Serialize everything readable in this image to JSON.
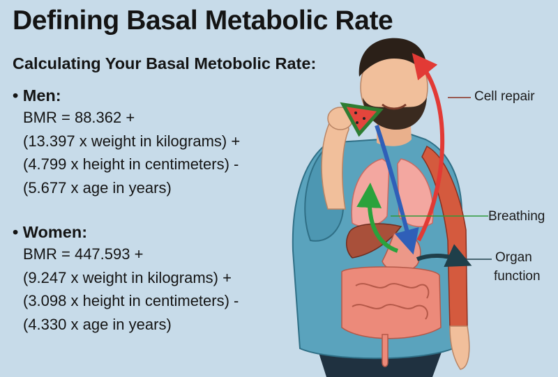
{
  "title": "Defining Basal Metabolic Rate",
  "subtitle": "Calculating Your Basal Metobolic Rate:",
  "bullet": "•",
  "sections": [
    {
      "heading": "Men:",
      "lines": [
        "BMR = 88.362 +",
        "(13.397 x weight in kilograms) +",
        "(4.799 x height in centimeters) -",
        "(5.677 x age in years)"
      ]
    },
    {
      "heading": "Women:",
      "lines": [
        "BMR = 447.593 +",
        "(9.247 x weight in kilograms) +",
        "(3.098 x height in centimeters) -",
        "(4.330 x age in years)"
      ]
    }
  ],
  "callouts": {
    "cell_repair": "Cell repair",
    "breathing": "Breathing",
    "organ_function_line1": "Organ",
    "organ_function_line2": "function"
  },
  "colors": {
    "background": "#c7dbe9",
    "shirt": "#5aa3bd",
    "skin": "#f1bf9b",
    "hair": "#2b2018",
    "lungs": "#f3a7a0",
    "liver": "#a9503a",
    "intestines": "#ec8a7a",
    "muscle": "#d45a3e",
    "arrow_red": "#e23a35",
    "arrow_blue": "#2f5fb8",
    "arrow_green": "#2aa23c",
    "arrow_dark": "#1f3f4a",
    "leader_line": "#2e9a3a"
  }
}
